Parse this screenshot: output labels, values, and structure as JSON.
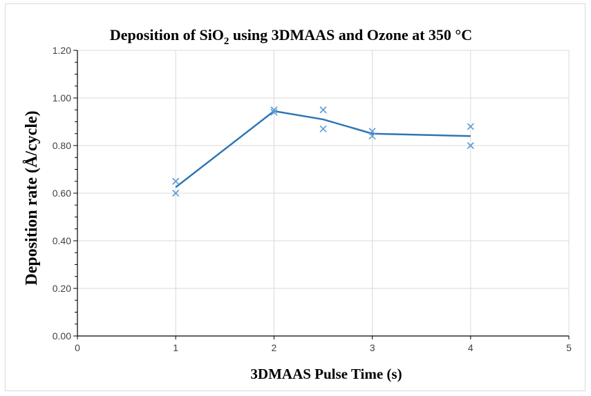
{
  "chart_data": {
    "type": "scatter",
    "title": {
      "prefix": "Deposition of SiO",
      "subscript": "2",
      "suffix": " using 3DMAAS and Ozone at 350 °C"
    },
    "xlabel": "3DMAAS Pulse Time (s)",
    "ylabel": "Deposition rate (Å/cycle)",
    "xlim": [
      0,
      5
    ],
    "ylim": [
      0,
      1.2
    ],
    "x_ticks": [
      0,
      1,
      2,
      3,
      4,
      5
    ],
    "y_ticks": [
      0.0,
      0.2,
      0.4,
      0.6,
      0.8,
      1.0,
      1.2
    ],
    "x_tick_labels": [
      "0",
      "1",
      "2",
      "3",
      "4",
      "5"
    ],
    "y_tick_labels": [
      "0.00",
      "0.20",
      "0.40",
      "0.60",
      "0.80",
      "1.00",
      "1.20"
    ],
    "grid": true,
    "legend": "none",
    "series": [
      {
        "kind": "markers",
        "marker": "x",
        "color": "#5b9bd5",
        "points": [
          {
            "x": 1,
            "y": 0.65
          },
          {
            "x": 1,
            "y": 0.6
          },
          {
            "x": 2,
            "y": 0.95
          },
          {
            "x": 2,
            "y": 0.94
          },
          {
            "x": 2.5,
            "y": 0.95
          },
          {
            "x": 2.5,
            "y": 0.87
          },
          {
            "x": 3,
            "y": 0.86
          },
          {
            "x": 3,
            "y": 0.84
          },
          {
            "x": 4,
            "y": 0.88
          },
          {
            "x": 4,
            "y": 0.8
          }
        ]
      },
      {
        "kind": "line",
        "color": "#2e75b6",
        "points": [
          {
            "x": 1,
            "y": 0.625
          },
          {
            "x": 2,
            "y": 0.945
          },
          {
            "x": 2.5,
            "y": 0.91
          },
          {
            "x": 3,
            "y": 0.85
          },
          {
            "x": 4,
            "y": 0.84
          }
        ]
      }
    ]
  }
}
